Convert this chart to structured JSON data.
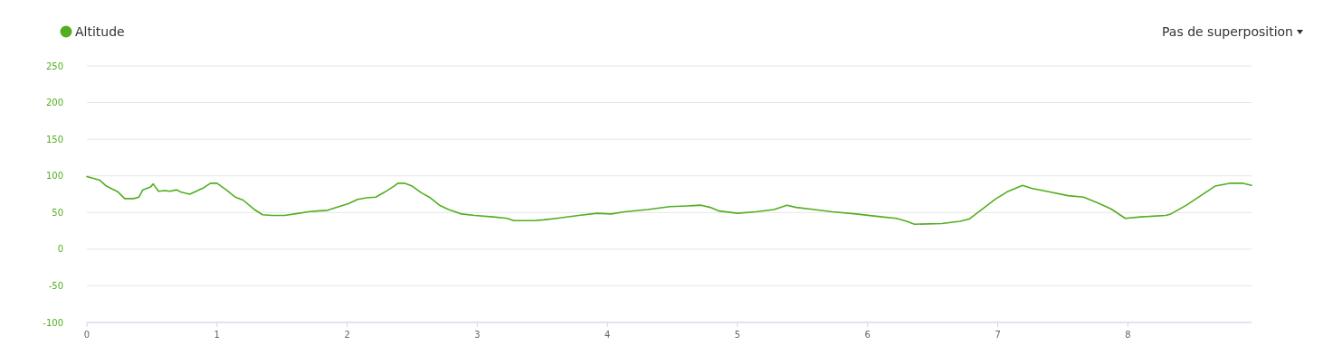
{
  "chart_data": {
    "type": "line",
    "legend": "top left",
    "marker": "none",
    "grid": "y",
    "line_style": "solid",
    "annotations": [
      "Pas de superposition"
    ],
    "xlim": [
      0,
      8.95
    ],
    "xticks": [
      0,
      1,
      2,
      3,
      4,
      5,
      6,
      7,
      8
    ],
    "ylim": [
      -100,
      250
    ],
    "yticks": [
      -100,
      -50,
      0,
      50,
      100,
      150,
      200,
      250
    ],
    "series": [
      {
        "name": "Altitude",
        "color": "#52ae1f",
        "x": [
          0,
          0.1,
          0.15,
          0.24,
          0.29,
          0.36,
          0.4,
          0.43,
          0.49,
          0.51,
          0.55,
          0.6,
          0.64,
          0.69,
          0.72,
          0.79,
          0.84,
          0.9,
          0.95,
          1.0,
          1.07,
          1.14,
          1.2,
          1.28,
          1.35,
          1.42,
          1.52,
          1.63,
          1.7,
          1.77,
          1.85,
          1.92,
          2.01,
          2.08,
          2.15,
          2.22,
          2.29,
          2.36,
          2.39,
          2.44,
          2.5,
          2.57,
          2.64,
          2.71,
          2.78,
          2.88,
          2.98,
          3.12,
          3.23,
          3.28,
          3.44,
          3.51,
          3.61,
          3.78,
          3.92,
          4.03,
          4.13,
          4.31,
          4.48,
          4.62,
          4.72,
          4.79,
          4.86,
          5.0,
          5.14,
          5.28,
          5.38,
          5.45,
          5.59,
          5.73,
          5.91,
          6.11,
          6.22,
          6.3,
          6.36,
          6.57,
          6.71,
          6.78,
          6.98,
          7.07,
          7.19,
          7.26,
          7.4,
          7.54,
          7.66,
          7.77,
          7.87,
          7.98,
          8.1,
          8.29,
          8.33,
          8.45,
          8.56,
          8.67,
          8.79,
          8.88,
          8.95
        ],
        "values": [
          99,
          94,
          86,
          78,
          69,
          69,
          71,
          81,
          85,
          89,
          79,
          80,
          79,
          81,
          78,
          75,
          79,
          84,
          90,
          90,
          81,
          71,
          67,
          55,
          47,
          46,
          46,
          49,
          51,
          52,
          53,
          57,
          62,
          68,
          70,
          71,
          78,
          86,
          90,
          90,
          86,
          77,
          70,
          60,
          54,
          48,
          46,
          44,
          42,
          39,
          39,
          40,
          42,
          46,
          49,
          48,
          51,
          54,
          58,
          59,
          60,
          57,
          52,
          49,
          51,
          54,
          60,
          57,
          54,
          51,
          48,
          44,
          42,
          38,
          34,
          35,
          38,
          41,
          68,
          78,
          87,
          83,
          78,
          73,
          71,
          63,
          55,
          42,
          44,
          46,
          48,
          60,
          73,
          86,
          90,
          90,
          87
        ]
      }
    ]
  }
}
